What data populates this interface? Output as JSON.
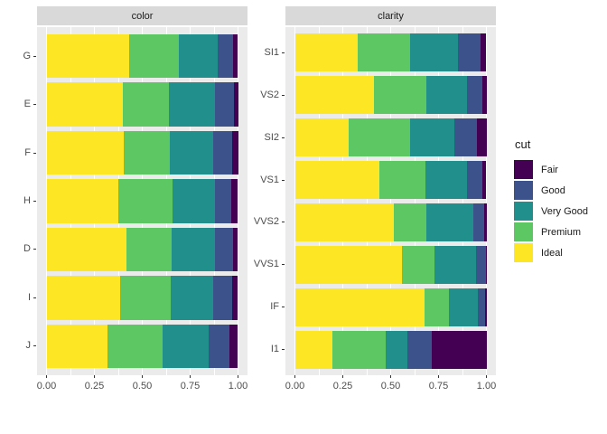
{
  "chart_data": {
    "type": "bar",
    "orientation": "horizontal",
    "stacking": "fill",
    "xlim": [
      0,
      1
    ],
    "x_ticks": {
      "labels": [
        "0.00",
        "0.25",
        "0.50",
        "0.75",
        "1.00"
      ],
      "values": [
        0,
        0.25,
        0.5,
        0.75,
        1
      ]
    },
    "minor_gridlines": [
      0.125,
      0.375,
      0.625,
      0.875
    ],
    "grid_on": true,
    "legend": {
      "title": "cut",
      "position": "right",
      "entries": [
        {
          "label": "Fair",
          "color": "#440154"
        },
        {
          "label": "Good",
          "color": "#3B528B"
        },
        {
          "label": "Very Good",
          "color": "#21908C"
        },
        {
          "label": "Premium",
          "color": "#5DC863"
        },
        {
          "label": "Ideal",
          "color": "#FDE725"
        }
      ]
    },
    "stack_order_left_to_right": [
      "Ideal",
      "Premium",
      "Very Good",
      "Good",
      "Fair"
    ],
    "panels": [
      {
        "title": "color",
        "categories": [
          "G",
          "E",
          "F",
          "H",
          "D",
          "I",
          "J"
        ],
        "series": [
          {
            "name": "Ideal",
            "color": "#FDE725",
            "values": [
              0.4325,
              0.3984,
              0.401,
              0.3751,
              0.4183,
              0.386,
              0.3191
            ]
          },
          {
            "name": "Premium",
            "color": "#5DC863",
            "values": [
              0.2589,
              0.2385,
              0.2443,
              0.2842,
              0.2366,
              0.2634,
              0.2877
            ]
          },
          {
            "name": "Very Good",
            "color": "#21908C",
            "values": [
              0.2036,
              0.245,
              0.2268,
              0.2197,
              0.2233,
              0.2221,
              0.2415
            ]
          },
          {
            "name": "Good",
            "color": "#3B528B",
            "values": [
              0.0771,
              0.0952,
              0.0953,
              0.0845,
              0.0977,
              0.0963,
              0.1093
            ]
          },
          {
            "name": "Fair",
            "color": "#440154",
            "values": [
              0.0278,
              0.0229,
              0.0327,
              0.0365,
              0.0241,
              0.0323,
              0.0424
            ]
          }
        ]
      },
      {
        "title": "clarity",
        "categories": [
          "SI1",
          "VS2",
          "SI2",
          "VS1",
          "VVS2",
          "VVS1",
          "IF",
          "I1"
        ],
        "series": [
          {
            "name": "Ideal",
            "color": "#FDE725",
            "values": [
              0.3277,
              0.4137,
              0.2826,
              0.4392,
              0.5144,
              0.5601,
              0.6771,
              0.197
            ]
          },
          {
            "name": "Premium",
            "color": "#5DC863",
            "values": [
              0.2736,
              0.2739,
              0.3208,
              0.2434,
              0.1717,
              0.1685,
              0.1285,
              0.2767
            ]
          },
          {
            "name": "Very Good",
            "color": "#21908C",
            "values": [
              0.248,
              0.2114,
              0.2284,
              0.2172,
              0.2438,
              0.2159,
              0.1497,
              0.1134
            ]
          },
          {
            "name": "Good",
            "color": "#3B528B",
            "values": [
              0.1194,
              0.0798,
              0.1176,
              0.0793,
              0.0565,
              0.0509,
              0.0397,
              0.1296
            ]
          },
          {
            "name": "Fair",
            "color": "#440154",
            "values": [
              0.0312,
              0.0213,
              0.0507,
              0.0208,
              0.0136,
              0.0047,
              0.005,
              0.2834
            ]
          }
        ]
      }
    ],
    "theme": {
      "panel_bg": "#EBEBEB",
      "strip_bg": "#D9D9D9",
      "grid_color": "#FFFFFF",
      "tick_color": "#333333",
      "axis_text_color": "#4D4D4D",
      "strip_text_color": "#1A1A1A"
    }
  }
}
